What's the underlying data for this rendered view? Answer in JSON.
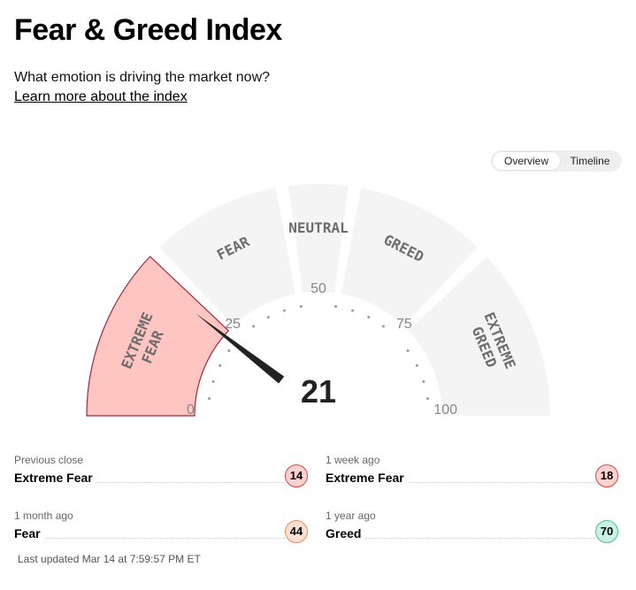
{
  "header": {
    "title": "Fear & Greed Index",
    "subtitle": "What emotion is driving the market now?",
    "learn_more": "Learn more about the index"
  },
  "toggle": {
    "overview": "Overview",
    "timeline": "Timeline",
    "selected": "Overview"
  },
  "gauge": {
    "value": 21,
    "value_label": "21",
    "min": 0,
    "max": 100,
    "active_segment": "extreme-fear",
    "segments": [
      {
        "id": "extreme-fear",
        "label_lines": [
          "EXTREME",
          "FEAR"
        ],
        "from": 0,
        "to": 25
      },
      {
        "id": "fear",
        "label_lines": [
          "FEAR"
        ],
        "from": 25,
        "to": 45
      },
      {
        "id": "neutral",
        "label_lines": [
          "NEUTRAL"
        ],
        "from": 45,
        "to": 55
      },
      {
        "id": "greed",
        "label_lines": [
          "GREED"
        ],
        "from": 55,
        "to": 75
      },
      {
        "id": "extreme-greed",
        "label_lines": [
          "EXTREME",
          "GREED"
        ],
        "from": 75,
        "to": 100
      }
    ],
    "tick_labels": [
      {
        "value": 0,
        "text": "0"
      },
      {
        "value": 25,
        "text": "25"
      },
      {
        "value": 50,
        "text": "50"
      },
      {
        "value": 75,
        "text": "75"
      },
      {
        "value": 100,
        "text": "100"
      }
    ]
  },
  "history": [
    {
      "period": "Previous close",
      "rating": "Extreme Fear",
      "value": "14",
      "tone": "extreme-fear"
    },
    {
      "period": "1 week ago",
      "rating": "Extreme Fear",
      "value": "18",
      "tone": "extreme-fear"
    },
    {
      "period": "1 month ago",
      "rating": "Fear",
      "value": "44",
      "tone": "fear"
    },
    {
      "period": "1 year ago",
      "rating": "Greed",
      "value": "70",
      "tone": "greed"
    }
  ],
  "last_updated": "Last updated Mar 14 at 7:59:57 PM ET",
  "colors": {
    "segment_inactive": "#f4f4f4",
    "segment_active_fill": "#ffc6c1",
    "segment_active_stroke": "#a3263f",
    "needle": "#222222",
    "badge_extreme_fear_bg": "#fdd2d0",
    "badge_extreme_fear_border": "#e0443c",
    "badge_fear_bg": "#fde0d2",
    "badge_fear_border": "#ef8a5a",
    "badge_greed_bg": "#c8f0e3",
    "badge_greed_border": "#4cbf98"
  }
}
